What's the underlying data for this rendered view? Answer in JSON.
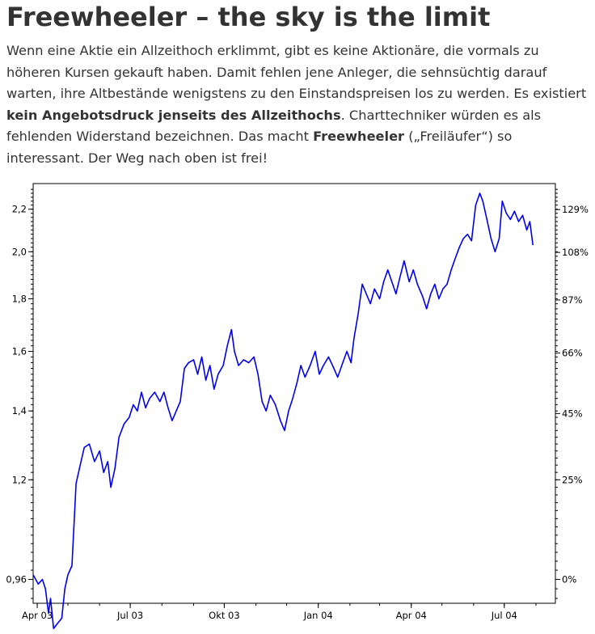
{
  "article": {
    "title": "Freewheeler – the sky is the limit",
    "intro_1": "Wenn eine Aktie ein Allzeithoch erklimmt, gibt es keine Aktionäre, die vormals zu höheren Kursen gekauft haben. Damit fehlen jene Anleger, die sehnsüchtig darauf warten, ihre Altbestände wenigstens zu den Einstandspreisen los zu werden. Es existiert ",
    "intro_bold_1": "kein Angebotsdruck jenseits des Allzeithochs",
    "intro_2": ". Charttechniker würden es als fehlenden Widerstand bezeichnen. Das macht ",
    "intro_bold_2": "Freewheeler",
    "intro_3": " („Freiläufer“) so interessant. Der Weg nach oben ist frei!"
  },
  "chart_data": {
    "type": "line",
    "y_scale": "log",
    "line_color": "#0000ee",
    "ylim": [
      0.91,
      2.33
    ],
    "yticks": [
      {
        "value": 0.96,
        "label": "0,96"
      },
      {
        "value": 1.2,
        "label": "1,2"
      },
      {
        "value": 1.4,
        "label": "1,4"
      },
      {
        "value": 1.6,
        "label": "1,6"
      },
      {
        "value": 1.8,
        "label": "1,8"
      },
      {
        "value": 2.0,
        "label": "2,0"
      },
      {
        "value": 2.2,
        "label": "2,2"
      }
    ],
    "y2ticks": [
      {
        "value": 0.96,
        "label": "0%"
      },
      {
        "value": 1.2,
        "label": "25%"
      },
      {
        "value": 1.392,
        "label": "45%"
      },
      {
        "value": 1.594,
        "label": "66%"
      },
      {
        "value": 1.795,
        "label": "87%"
      },
      {
        "value": 1.997,
        "label": "108%"
      },
      {
        "value": 2.198,
        "label": "129%"
      }
    ],
    "xlim": [
      "2003-03-28",
      "2004-08-20"
    ],
    "xticks": [
      {
        "date": "2003-04-01",
        "label": "Apr 03"
      },
      {
        "date": "2003-07-01",
        "label": "Jul 03"
      },
      {
        "date": "2003-10-01",
        "label": "Okt 03"
      },
      {
        "date": "2004-01-01",
        "label": "Jan 04"
      },
      {
        "date": "2004-04-01",
        "label": "Apr 04"
      },
      {
        "date": "2004-07-01",
        "label": "Jul 04"
      }
    ],
    "series": [
      {
        "points": [
          [
            "2003-03-28",
            0.97
          ],
          [
            "2003-04-02",
            0.95
          ],
          [
            "2003-04-06",
            0.96
          ],
          [
            "2003-04-09",
            0.94
          ],
          [
            "2003-04-12",
            0.89
          ],
          [
            "2003-04-14",
            0.92
          ],
          [
            "2003-04-17",
            0.86
          ],
          [
            "2003-04-21",
            0.87
          ],
          [
            "2003-04-25",
            0.88
          ],
          [
            "2003-04-28",
            0.94
          ],
          [
            "2003-05-01",
            0.97
          ],
          [
            "2003-05-05",
            0.99
          ],
          [
            "2003-05-09",
            1.19
          ],
          [
            "2003-05-13",
            1.24
          ],
          [
            "2003-05-17",
            1.29
          ],
          [
            "2003-05-22",
            1.3
          ],
          [
            "2003-05-27",
            1.25
          ],
          [
            "2003-06-01",
            1.28
          ],
          [
            "2003-06-05",
            1.22
          ],
          [
            "2003-06-09",
            1.25
          ],
          [
            "2003-06-12",
            1.18
          ],
          [
            "2003-06-16",
            1.23
          ],
          [
            "2003-06-20",
            1.32
          ],
          [
            "2003-06-25",
            1.36
          ],
          [
            "2003-06-30",
            1.38
          ],
          [
            "2003-07-04",
            1.42
          ],
          [
            "2003-07-08",
            1.4
          ],
          [
            "2003-07-12",
            1.46
          ],
          [
            "2003-07-16",
            1.41
          ],
          [
            "2003-07-20",
            1.44
          ],
          [
            "2003-07-25",
            1.46
          ],
          [
            "2003-07-30",
            1.43
          ],
          [
            "2003-08-03",
            1.46
          ],
          [
            "2003-08-07",
            1.41
          ],
          [
            "2003-08-11",
            1.37
          ],
          [
            "2003-08-15",
            1.4
          ],
          [
            "2003-08-19",
            1.43
          ],
          [
            "2003-08-23",
            1.54
          ],
          [
            "2003-08-27",
            1.56
          ],
          [
            "2003-09-01",
            1.57
          ],
          [
            "2003-09-05",
            1.52
          ],
          [
            "2003-09-09",
            1.58
          ],
          [
            "2003-09-13",
            1.5
          ],
          [
            "2003-09-17",
            1.55
          ],
          [
            "2003-09-21",
            1.47
          ],
          [
            "2003-09-25",
            1.52
          ],
          [
            "2003-09-30",
            1.55
          ],
          [
            "2003-10-04",
            1.62
          ],
          [
            "2003-10-08",
            1.68
          ],
          [
            "2003-10-11",
            1.6
          ],
          [
            "2003-10-15",
            1.55
          ],
          [
            "2003-10-20",
            1.57
          ],
          [
            "2003-10-25",
            1.56
          ],
          [
            "2003-10-30",
            1.58
          ],
          [
            "2003-11-03",
            1.52
          ],
          [
            "2003-11-07",
            1.43
          ],
          [
            "2003-11-11",
            1.4
          ],
          [
            "2003-11-15",
            1.45
          ],
          [
            "2003-11-20",
            1.42
          ],
          [
            "2003-11-25",
            1.37
          ],
          [
            "2003-11-29",
            1.34
          ],
          [
            "2003-12-03",
            1.4
          ],
          [
            "2003-12-07",
            1.44
          ],
          [
            "2003-12-11",
            1.49
          ],
          [
            "2003-12-15",
            1.55
          ],
          [
            "2003-12-19",
            1.51
          ],
          [
            "2003-12-24",
            1.55
          ],
          [
            "2003-12-29",
            1.6
          ],
          [
            "2004-01-02",
            1.52
          ],
          [
            "2004-01-06",
            1.55
          ],
          [
            "2004-01-11",
            1.58
          ],
          [
            "2004-01-15",
            1.55
          ],
          [
            "2004-01-20",
            1.51
          ],
          [
            "2004-01-25",
            1.56
          ],
          [
            "2004-01-29",
            1.6
          ],
          [
            "2004-02-02",
            1.56
          ],
          [
            "2004-02-05",
            1.65
          ],
          [
            "2004-02-09",
            1.74
          ],
          [
            "2004-02-13",
            1.86
          ],
          [
            "2004-02-17",
            1.82
          ],
          [
            "2004-02-21",
            1.78
          ],
          [
            "2004-02-25",
            1.84
          ],
          [
            "2004-03-01",
            1.8
          ],
          [
            "2004-03-05",
            1.87
          ],
          [
            "2004-03-09",
            1.92
          ],
          [
            "2004-03-13",
            1.87
          ],
          [
            "2004-03-17",
            1.82
          ],
          [
            "2004-03-21",
            1.89
          ],
          [
            "2004-03-25",
            1.96
          ],
          [
            "2004-03-30",
            1.87
          ],
          [
            "2004-04-03",
            1.92
          ],
          [
            "2004-04-07",
            1.86
          ],
          [
            "2004-04-12",
            1.81
          ],
          [
            "2004-04-16",
            1.76
          ],
          [
            "2004-04-20",
            1.82
          ],
          [
            "2004-04-24",
            1.86
          ],
          [
            "2004-04-28",
            1.8
          ],
          [
            "2004-05-02",
            1.84
          ],
          [
            "2004-05-06",
            1.86
          ],
          [
            "2004-05-10",
            1.92
          ],
          [
            "2004-05-14",
            1.97
          ],
          [
            "2004-05-18",
            2.02
          ],
          [
            "2004-05-22",
            2.06
          ],
          [
            "2004-05-26",
            2.08
          ],
          [
            "2004-05-30",
            2.05
          ],
          [
            "2004-06-03",
            2.22
          ],
          [
            "2004-06-07",
            2.28
          ],
          [
            "2004-06-10",
            2.24
          ],
          [
            "2004-06-14",
            2.15
          ],
          [
            "2004-06-18",
            2.06
          ],
          [
            "2004-06-22",
            2.0
          ],
          [
            "2004-06-26",
            2.06
          ],
          [
            "2004-06-29",
            2.24
          ],
          [
            "2004-07-03",
            2.18
          ],
          [
            "2004-07-07",
            2.15
          ],
          [
            "2004-07-11",
            2.19
          ],
          [
            "2004-07-15",
            2.14
          ],
          [
            "2004-07-19",
            2.17
          ],
          [
            "2004-07-23",
            2.1
          ],
          [
            "2004-07-26",
            2.14
          ],
          [
            "2004-07-29",
            2.03
          ]
        ]
      }
    ]
  }
}
